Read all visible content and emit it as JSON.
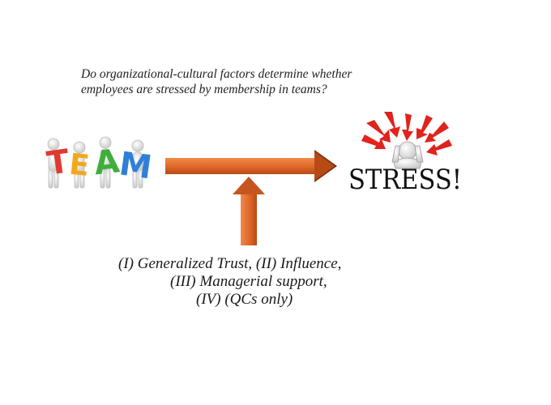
{
  "question": {
    "line1": "Do organizational-cultural factors determine whether",
    "line2": "employees are stressed by membership in teams?"
  },
  "team_letters": [
    "T",
    "E",
    "A",
    "M"
  ],
  "stress_text": "STRESS!",
  "moderators": {
    "line1": "(I)  Generalized Trust, (II) Influence,",
    "line2": "(III) Managerial support,",
    "line3": "(IV) (QCs only)"
  },
  "colors": {
    "arrow": "#e06a2a",
    "arrow_dark": "#b84a16",
    "stress_rays": "#e0241d",
    "letter_T": "#e03a2f",
    "letter_E": "#f2a81d",
    "letter_A": "#3fae3a",
    "letter_M": "#2f7fd6"
  },
  "icons": [
    "team-figures-icon",
    "stressed-person-icon"
  ]
}
